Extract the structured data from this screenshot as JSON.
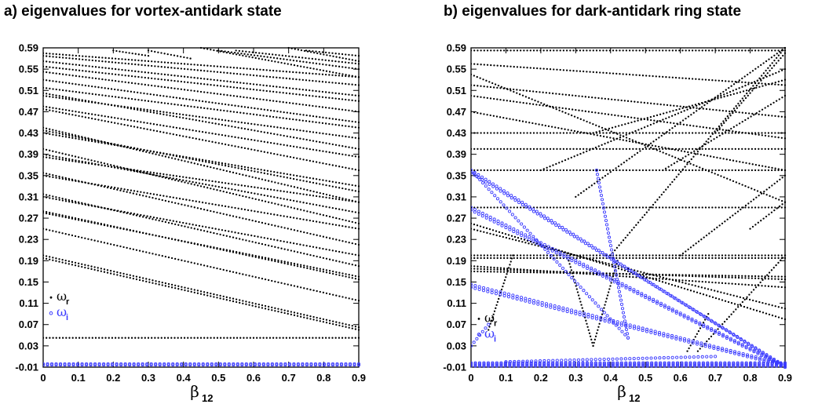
{
  "colors": {
    "real": "#000000",
    "imag": "#3b3bff",
    "axis": "#000000"
  },
  "chart_data": [
    {
      "type": "scatter",
      "title": "a) eigenvalues for vortex-antidark state",
      "xlabel": "β",
      "xlabel_sub": "12",
      "xlim": [
        0,
        0.9
      ],
      "ylim": [
        -0.01,
        0.59
      ],
      "xticks": [
        "0",
        "0.1",
        "0.2",
        "0.3",
        "0.4",
        "0.5",
        "0.6",
        "0.7",
        "0.8",
        "0.9"
      ],
      "yticks": [
        "-0.01",
        "0.03",
        "0.07",
        "0.11",
        "0.15",
        "0.19",
        "0.23",
        "0.27",
        "0.31",
        "0.35",
        "0.39",
        "0.43",
        "0.47",
        "0.51",
        "0.55",
        "0.59"
      ],
      "grid": false,
      "legend": {
        "position": "lower-left",
        "entries": [
          {
            "symbol": "ω",
            "sub": "r",
            "series": "real"
          },
          {
            "symbol": "ω",
            "sub": "i",
            "series": "imag"
          }
        ]
      },
      "series": [
        {
          "type": "real",
          "lines": [
            [
              0,
              0.045,
              0.9,
              0.045
            ],
            [
              0,
              0.2,
              0.9,
              0.065
            ],
            [
              0,
              0.195,
              0.9,
              0.06
            ],
            [
              0,
              0.25,
              0.9,
              0.115
            ],
            [
              0,
              0.28,
              0.9,
              0.16
            ],
            [
              0,
              0.283,
              0.9,
              0.155
            ],
            [
              0,
              0.31,
              0.9,
              0.2
            ],
            [
              0,
              0.315,
              0.9,
              0.18
            ],
            [
              0,
              0.35,
              0.9,
              0.25
            ],
            [
              0,
              0.355,
              0.9,
              0.22
            ],
            [
              0,
              0.385,
              0.9,
              0.3
            ],
            [
              0,
              0.39,
              0.9,
              0.28
            ],
            [
              0,
              0.4,
              0.9,
              0.26
            ],
            [
              0,
              0.43,
              0.9,
              0.33
            ],
            [
              0,
              0.435,
              0.9,
              0.32
            ],
            [
              0,
              0.44,
              0.9,
              0.3
            ],
            [
              0,
              0.475,
              0.9,
              0.36
            ],
            [
              0,
              0.48,
              0.9,
              0.385
            ],
            [
              0,
              0.5,
              0.9,
              0.42
            ],
            [
              0,
              0.505,
              0.9,
              0.4
            ],
            [
              0,
              0.515,
              0.9,
              0.44
            ],
            [
              0,
              0.53,
              0.9,
              0.45
            ],
            [
              0,
              0.545,
              0.9,
              0.47
            ],
            [
              0,
              0.555,
              0.9,
              0.49
            ],
            [
              0,
              0.565,
              0.9,
              0.5
            ],
            [
              0,
              0.575,
              0.9,
              0.52
            ],
            [
              0,
              0.58,
              0.9,
              0.535
            ]
          ]
        },
        {
          "type": "real",
          "lines": [
            [
              0.45,
              0.59,
              0.9,
              0.535
            ],
            [
              0.5,
              0.585,
              0.9,
              0.55
            ],
            [
              0.55,
              0.585,
              0.9,
              0.56
            ],
            [
              0.7,
              0.59,
              0.9,
              0.565
            ],
            [
              0.75,
              0.585,
              0.9,
              0.575
            ],
            [
              0.2,
              0.585,
              0.3,
              0.575
            ],
            [
              0.3,
              0.585,
              0.42,
              0.57
            ]
          ]
        },
        {
          "type": "imag",
          "lines": [
            [
              0,
              -0.004,
              0.9,
              -0.004
            ],
            [
              0,
              -0.006,
              0.9,
              -0.006
            ]
          ]
        }
      ]
    },
    {
      "type": "scatter",
      "title": "b) eigenvalues for dark-antidark ring state",
      "xlabel": "β",
      "xlabel_sub": "12",
      "xlim": [
        0,
        0.9
      ],
      "ylim": [
        -0.01,
        0.59
      ],
      "xticks": [
        "0",
        "0.1",
        "0.2",
        "0.3",
        "0.4",
        "0.5",
        "0.6",
        "0.7",
        "0.8",
        "0.9"
      ],
      "yticks": [
        "-0.01",
        "0.03",
        "0.07",
        "0.11",
        "0.15",
        "0.19",
        "0.23",
        "0.27",
        "0.31",
        "0.35",
        "0.39",
        "0.43",
        "0.47",
        "0.51",
        "0.55",
        "0.59"
      ],
      "grid": false,
      "legend": {
        "position": "lower-left",
        "entries": [
          {
            "symbol": "ω",
            "sub": "r",
            "series": "real"
          },
          {
            "symbol": "ω",
            "sub": "i",
            "series": "imag"
          }
        ]
      },
      "series": [
        {
          "type": "real",
          "lines": [
            [
              0,
              0.585,
              0.9,
              0.585
            ],
            [
              0,
              0.43,
              0.9,
              0.43
            ],
            [
              0,
              0.4,
              0.9,
              0.4
            ],
            [
              0,
              0.36,
              0.9,
              0.36
            ],
            [
              0,
              0.29,
              0.9,
              0.29
            ],
            [
              0,
              0.2,
              0.9,
              0.2
            ],
            [
              0,
              0.195,
              0.9,
              0.195
            ],
            [
              0,
              0.54,
              0.9,
              0.3
            ],
            [
              0,
              0.52,
              0.9,
              0.46
            ],
            [
              0,
              0.5,
              0.9,
              0.42
            ],
            [
              0,
              0.47,
              0.9,
              0.36
            ],
            [
              0,
              0.56,
              0.9,
              0.52
            ],
            [
              0,
              0.26,
              0.9,
              0.08
            ],
            [
              0,
              0.25,
              0.9,
              0.1
            ],
            [
              0,
              0.18,
              0.9,
              0.14
            ],
            [
              0,
              0.175,
              0.9,
              0.155
            ],
            [
              0,
              0.17,
              0.9,
              0.16
            ],
            [
              0.3,
              0.31,
              0.9,
              0.59
            ],
            [
              0.4,
              0.2,
              0.9,
              0.59
            ],
            [
              0.2,
              0.36,
              0.9,
              0.55
            ],
            [
              0.35,
              0.43,
              0.9,
              0.53
            ],
            [
              0.55,
              0.36,
              0.9,
              0.5
            ],
            [
              0.6,
              0.2,
              0.9,
              0.35
            ],
            [
              0.65,
              0.02,
              0.9,
              0.2
            ],
            [
              0.7,
              0.43,
              0.9,
              0.58
            ],
            [
              0.8,
              0.25,
              0.9,
              0.3
            ]
          ]
        },
        {
          "type": "real",
          "lines": [
            [
              0.05,
              0.06,
              0.12,
              0.2
            ],
            [
              0.35,
              0.03,
              0.42,
              0.19
            ],
            [
              0.35,
              0.03,
              0.28,
              0.19
            ],
            [
              0.62,
              0.02,
              0.68,
              0.09
            ]
          ]
        },
        {
          "type": "imag",
          "lines": [
            [
              0,
              0.36,
              0.9,
              -0.01
            ],
            [
              0,
              0.355,
              0.9,
              -0.008
            ],
            [
              0,
              0.29,
              0.9,
              -0.008
            ],
            [
              0,
              0.285,
              0.9,
              -0.01
            ],
            [
              0,
              0.145,
              0.9,
              -0.005
            ],
            [
              0,
              0.14,
              0.9,
              -0.008
            ],
            [
              0,
              0.36,
              0.45,
              0.045
            ],
            [
              0.45,
              0.045,
              0.36,
              0.36
            ],
            [
              0,
              -0.002,
              0.9,
              -0.002
            ],
            [
              0,
              -0.004,
              0.9,
              -0.004
            ],
            [
              0,
              -0.006,
              0.9,
              -0.006
            ],
            [
              0,
              -0.008,
              0.9,
              -0.008
            ],
            [
              0.1,
              0.0,
              0.7,
              0.01
            ],
            [
              0,
              0.03,
              0.05,
              0.07
            ]
          ]
        }
      ]
    }
  ]
}
